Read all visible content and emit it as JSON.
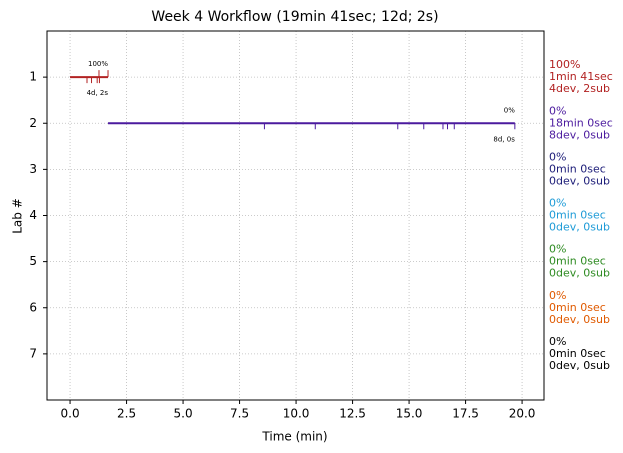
{
  "chart_data": {
    "type": "timeline",
    "title": "Week 4 Workflow (19min 41sec; 12d; 2s)",
    "x_label": "Time (min)",
    "y_label": "Lab #",
    "xlim": [
      -1.02,
      20.97
    ],
    "xticks": [
      {
        "value": 0,
        "label": "0.0"
      },
      2.5,
      {
        "value": 5,
        "label": "5.0"
      },
      7.5,
      {
        "value": 10,
        "label": "10.0"
      },
      12.5,
      {
        "value": 15,
        "label": "15.0"
      },
      17.5,
      {
        "value": 20,
        "label": "20.0"
      }
    ],
    "ylim": [
      8,
      0
    ],
    "yticks": [
      1,
      2,
      3,
      4,
      5,
      6,
      7
    ],
    "grid": true,
    "labs": [
      {
        "lab": 1,
        "color": "#b22222",
        "start": 0,
        "end": 1.68,
        "dev_times": [
          0.75,
          0.95,
          1.2,
          1.3
        ],
        "sub_times": [
          1.28,
          1.68
        ],
        "pct_label": "100%",
        "count_label": "4d, 2s",
        "summary": [
          "100%",
          "1min 41sec",
          "4dev, 2sub"
        ]
      },
      {
        "lab": 2,
        "color": "#4b1a9e",
        "start": 1.68,
        "end": 19.68,
        "dev_times": [
          8.6,
          10.85,
          14.5,
          15.65,
          16.5,
          16.7,
          17.0,
          19.68
        ],
        "sub_times": [],
        "pct_label": "0%",
        "count_label": "8d, 0s",
        "summary": [
          "0%",
          "18min 0sec",
          "8dev, 0sub"
        ]
      },
      {
        "lab": 3,
        "color": "#1c1c78",
        "summary": [
          "0%",
          "0min 0sec",
          "0dev, 0sub"
        ]
      },
      {
        "lab": 4,
        "color": "#1e9bd7",
        "summary": [
          "0%",
          "0min 0sec",
          "0dev, 0sub"
        ]
      },
      {
        "lab": 5,
        "color": "#2e8b22",
        "summary": [
          "0%",
          "0min 0sec",
          "0dev, 0sub"
        ]
      },
      {
        "lab": 6,
        "color": "#e05a00",
        "summary": [
          "0%",
          "0min 0sec",
          "0dev, 0sub"
        ]
      },
      {
        "lab": 7,
        "color": "#000000",
        "summary": [
          "0%",
          "0min 0sec",
          "0dev, 0sub"
        ]
      }
    ]
  }
}
